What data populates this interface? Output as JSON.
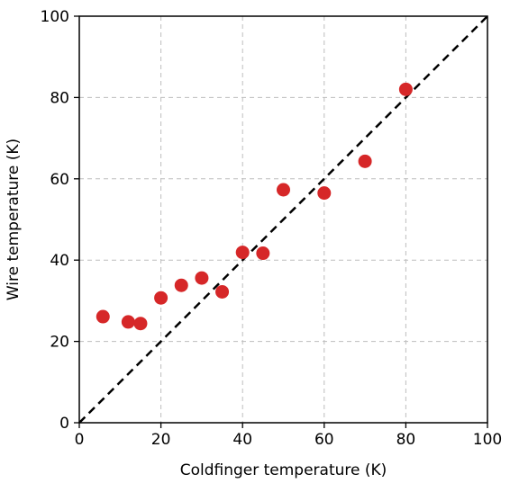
{
  "chart_data": {
    "type": "scatter",
    "xlabel": "Coldfinger temperature (K)",
    "ylabel": "Wire temperature (K)",
    "xlim": [
      0,
      100
    ],
    "ylim": [
      0,
      100
    ],
    "xticks": [
      0,
      20,
      40,
      60,
      80,
      100
    ],
    "yticks": [
      0,
      20,
      40,
      60,
      80,
      100
    ],
    "grid": true,
    "reference_line": {
      "style": "dashed",
      "color": "#000000",
      "from": [
        0,
        0
      ],
      "to": [
        100,
        100
      ]
    },
    "series": [
      {
        "color": "#d62728",
        "points": [
          {
            "x": 5.8,
            "y": 26.1
          },
          {
            "x": 12.0,
            "y": 24.8
          },
          {
            "x": 15.0,
            "y": 24.4
          },
          {
            "x": 20.0,
            "y": 30.7
          },
          {
            "x": 25.0,
            "y": 33.8
          },
          {
            "x": 30.0,
            "y": 35.6
          },
          {
            "x": 35.0,
            "y": 32.2
          },
          {
            "x": 40.0,
            "y": 41.9
          },
          {
            "x": 45.0,
            "y": 41.7
          },
          {
            "x": 50.0,
            "y": 57.3
          },
          {
            "x": 60.0,
            "y": 56.5
          },
          {
            "x": 70.0,
            "y": 64.3
          },
          {
            "x": 80.0,
            "y": 82.0
          }
        ]
      }
    ]
  }
}
